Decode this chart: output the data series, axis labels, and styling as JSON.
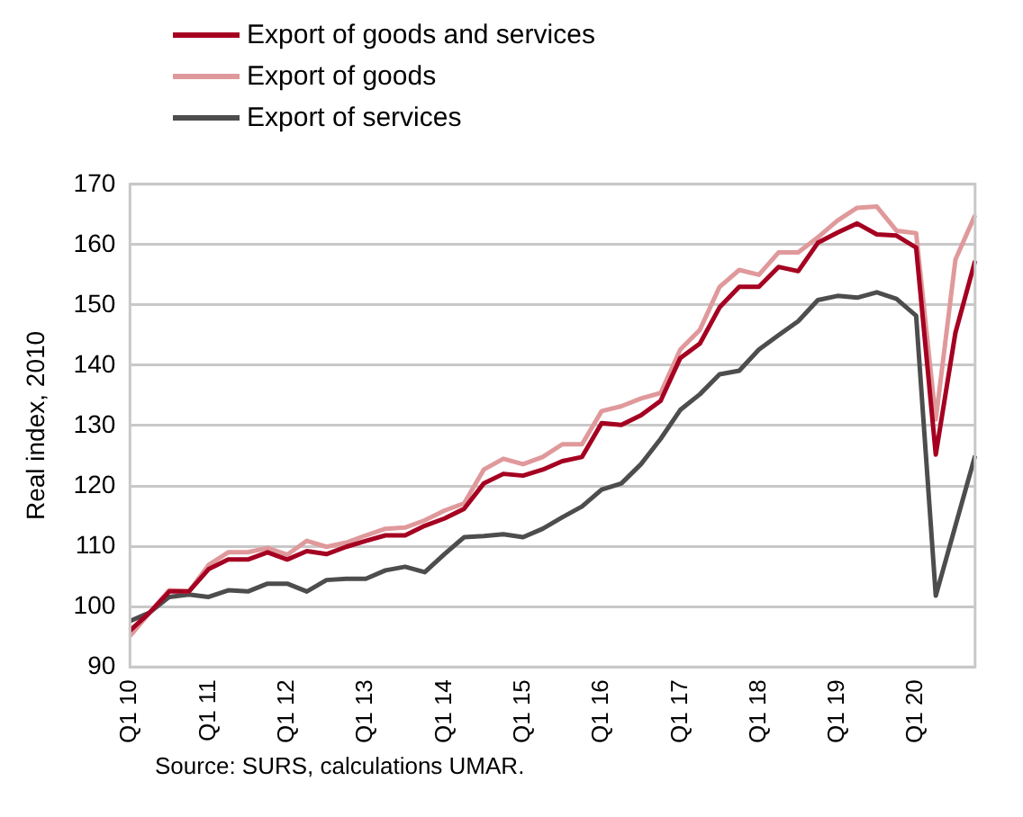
{
  "chart_data": {
    "type": "line",
    "ylabel": "Real index, 2010",
    "annotations": [
      "Source: SURS, calculations UMAR."
    ],
    "categories": [
      "Q1 10",
      null,
      null,
      null,
      "Q1 11",
      null,
      null,
      null,
      "Q1 12",
      null,
      null,
      null,
      "Q1 13",
      null,
      null,
      null,
      "Q1 14",
      null,
      null,
      null,
      "Q1 15",
      null,
      null,
      null,
      "Q1 16",
      null,
      null,
      null,
      "Q1 17",
      null,
      null,
      null,
      "Q1 18",
      null,
      null,
      null,
      "Q1 19",
      null,
      null,
      null,
      "Q1 20",
      null,
      null,
      null
    ],
    "series": [
      {
        "name": "Export of goods and services",
        "color": "#a50021",
        "values": [
          96,
          99,
          102.5,
          102.5,
          106.2,
          107.8,
          107.8,
          109,
          107.8,
          109.2,
          108.7,
          109.9,
          110.9,
          111.8,
          111.8,
          113.4,
          114.6,
          116.2,
          120.4,
          122,
          121.7,
          122.7,
          124.1,
          124.8,
          130.4,
          130.1,
          131.7,
          134.1,
          141.2,
          143.6,
          149.6,
          153,
          153,
          156.3,
          155.6,
          160.3,
          162,
          163.5,
          161.7,
          161.5,
          159.5,
          125.2,
          145.4,
          157.3
        ]
      },
      {
        "name": "Export of goods",
        "color": "#e0999b",
        "values": [
          95.1,
          99,
          102.7,
          102.5,
          106.9,
          109,
          109,
          109.7,
          108.6,
          110.9,
          109.9,
          110.6,
          111.8,
          112.9,
          113.1,
          114.3,
          115.9,
          117.1,
          122.7,
          124.5,
          123.6,
          124.8,
          126.9,
          126.9,
          132.4,
          133.2,
          134.5,
          135.4,
          142.6,
          145.9,
          153,
          155.8,
          155,
          158.7,
          158.7,
          161.2,
          164,
          166.1,
          166.3,
          162.3,
          161.9,
          131,
          157.5,
          164.9
        ]
      },
      {
        "name": "Export of services",
        "color": "#4d4d4d",
        "values": [
          97.6,
          99,
          101.6,
          102,
          101.6,
          102.7,
          102.5,
          103.8,
          103.8,
          102.5,
          104.4,
          104.6,
          104.6,
          106,
          106.6,
          105.7,
          108.7,
          111.5,
          111.7,
          112,
          111.5,
          112.9,
          114.8,
          116.6,
          119.4,
          120.4,
          123.6,
          127.8,
          132.6,
          135.2,
          138.5,
          139.1,
          142.6,
          145,
          147.3,
          150.8,
          151.5,
          151.2,
          152.1,
          151,
          148.2,
          101.8,
          113.4,
          125
        ]
      }
    ],
    "ylim": [
      90,
      170
    ],
    "yticks": [
      90,
      100,
      110,
      120,
      130,
      140,
      150,
      160,
      170
    ],
    "grid": "y",
    "legend": "top",
    "marker": "none",
    "line_style": "solid"
  }
}
